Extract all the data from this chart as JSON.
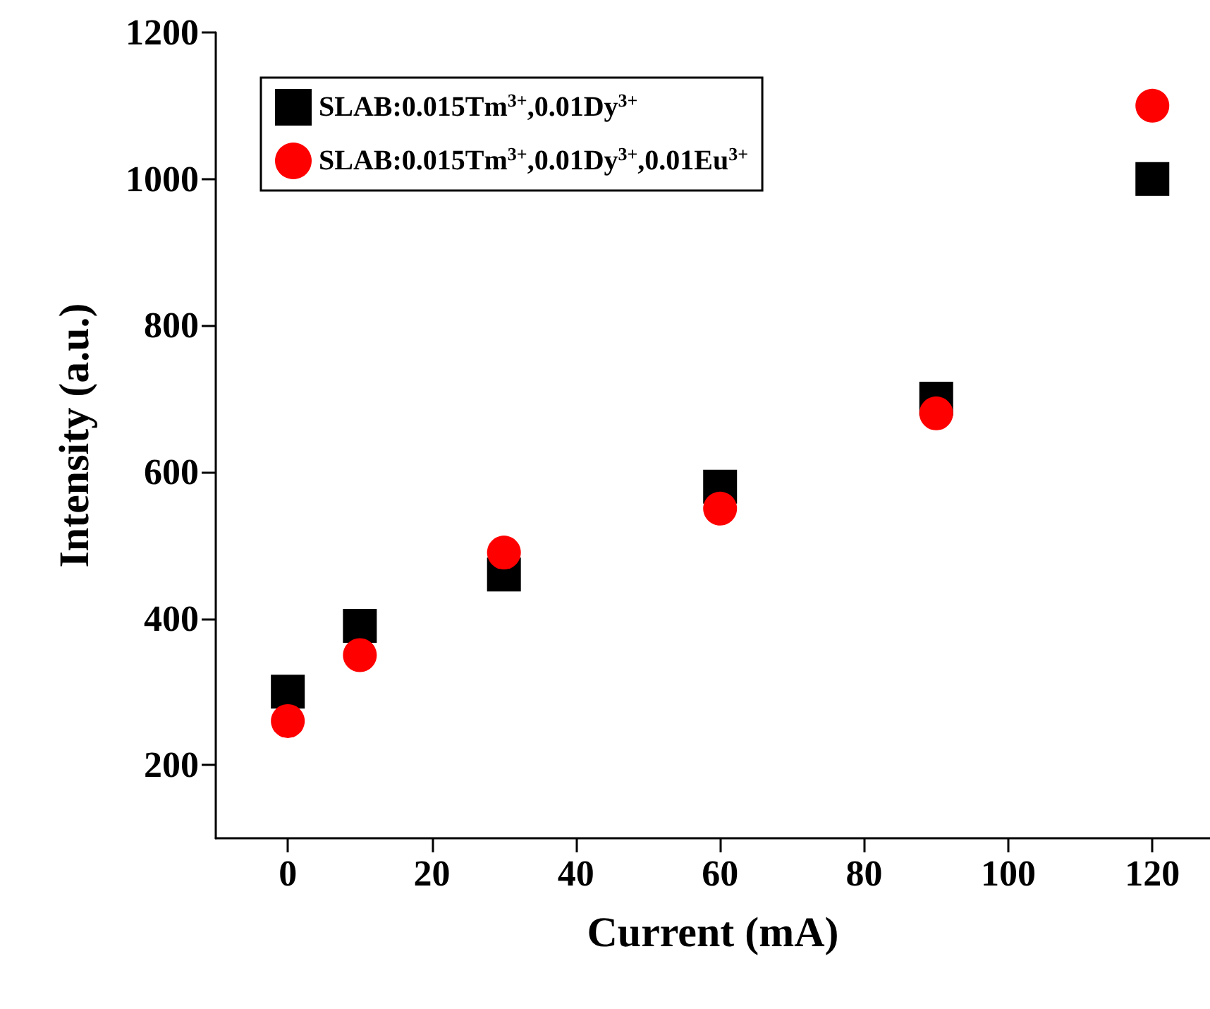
{
  "chart_data": {
    "type": "scatter",
    "xlabel": "Current (mA)",
    "ylabel": "Intensity (a.u.)",
    "x": [
      0,
      10,
      30,
      60,
      90,
      120
    ],
    "series": [
      {
        "name": "SLAB:0.015Tm$^{3+}$,0.01Dy$^{3+}$",
        "color": "#000000",
        "marker": "square",
        "values": [
          300,
          390,
          460,
          580,
          700,
          1000
        ]
      },
      {
        "name": "SLAB:0.015Tm$^{3+}$,0.01Dy$^{3+}$,0.01Eu$^{3+}$",
        "color": "#ff0000",
        "marker": "circle",
        "values": [
          260,
          350,
          490,
          550,
          680,
          1100
        ]
      }
    ],
    "xlim": [
      -10,
      128
    ],
    "xticks": [
      0,
      20,
      40,
      60,
      80,
      100,
      120
    ],
    "ylim": [
      100,
      1200
    ],
    "yticks": [
      200,
      400,
      600,
      800,
      1000,
      1200
    ],
    "grid": false,
    "legend": "top left"
  }
}
